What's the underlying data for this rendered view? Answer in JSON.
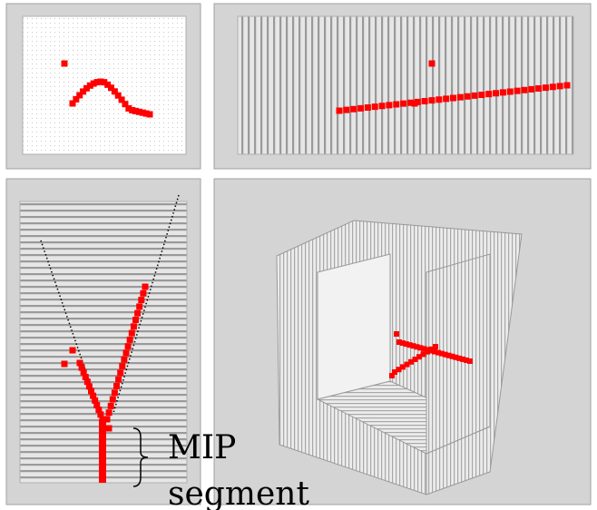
{
  "annotation": {
    "line1": "MIP",
    "line2": "segment"
  }
}
